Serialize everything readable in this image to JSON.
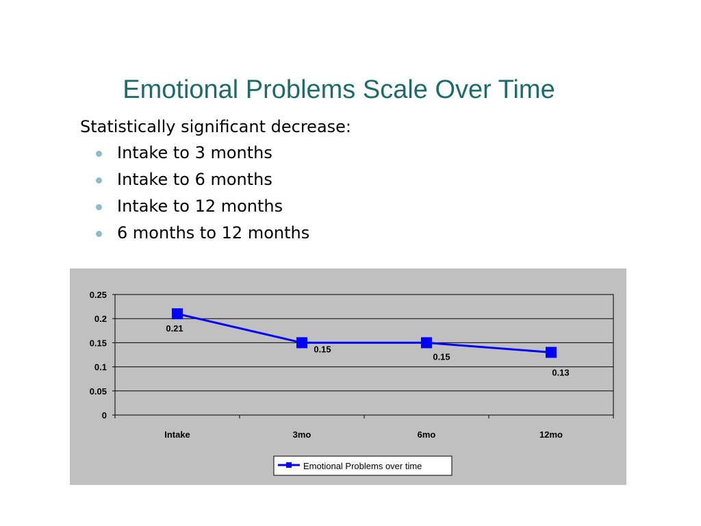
{
  "slide": {
    "title": "Emotional Problems Scale Over Time",
    "intro": "Statistically significant decrease:",
    "bullets": [
      "Intake to 3 months",
      "Intake to 6 months",
      "Intake to 12 months",
      "6 months to 12 months"
    ]
  },
  "colors": {
    "title": "#1f6b6b",
    "bullet": "#8fbcc8",
    "chart_background": "#c0c0c0",
    "plot_background": "#c0c0c0",
    "series": "#0000ff"
  },
  "chart_data": {
    "type": "line",
    "categories": [
      "Intake",
      "3mo",
      "6mo",
      "12mo"
    ],
    "series": [
      {
        "name": "Emotional Problems over time",
        "values": [
          0.21,
          0.15,
          0.15,
          0.13
        ],
        "labels": [
          "0.21",
          "0.15",
          "0.15",
          "0.13"
        ],
        "color": "#0000ff",
        "marker": "square"
      }
    ],
    "yticks": [
      "0",
      "0.05",
      "0.1",
      "0.15",
      "0.2",
      "0.25"
    ],
    "ylim": [
      0,
      0.25
    ],
    "grid": true,
    "legend": "bottom",
    "title": "",
    "xlabel": "",
    "ylabel": ""
  }
}
